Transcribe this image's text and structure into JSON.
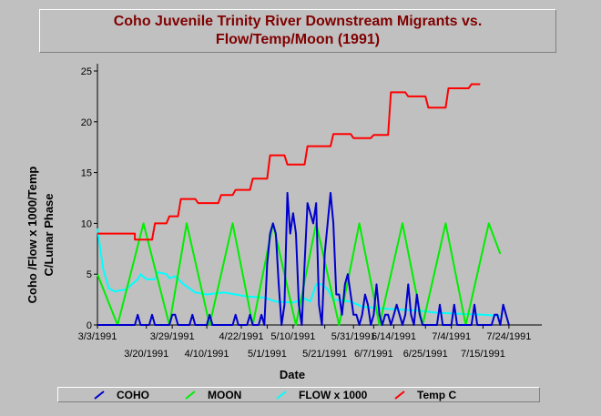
{
  "chart_data": {
    "type": "line",
    "title_lines": [
      "Coho Juvenile Trinity River Downstream Migrants vs.",
      "Flow/Temp/Moon (1991)"
    ],
    "xlabel": "Date",
    "ylabel_lines": [
      "Coho /Flow x 1000/Temp",
      "C/Lunar Phase"
    ],
    "ylim": [
      0,
      25
    ],
    "yticks": [
      0,
      5,
      10,
      15,
      20,
      25
    ],
    "x_range_days": [
      0,
      150
    ],
    "xticks_top": [
      {
        "label": "3/3/1991",
        "day": 0
      },
      {
        "label": "3/29/1991",
        "day": 26
      },
      {
        "label": "4/22/1991",
        "day": 50
      },
      {
        "label": "5/10/1991",
        "day": 68
      },
      {
        "label": "5/31/1991",
        "day": 89
      },
      {
        "label": "6/14/1991",
        "day": 103
      },
      {
        "label": "7/4/1991",
        "day": 123
      },
      {
        "label": "7/24/1991",
        "day": 143
      }
    ],
    "xticks_bottom": [
      {
        "label": "3/20/1991",
        "day": 17
      },
      {
        "label": "4/10/1991",
        "day": 38
      },
      {
        "label": "5/1/1991",
        "day": 59
      },
      {
        "label": "5/21/1991",
        "day": 79
      },
      {
        "label": "6/7/1991",
        "day": 96
      },
      {
        "label": "6/25/1991",
        "day": 114
      },
      {
        "label": "7/15/1991",
        "day": 134
      }
    ],
    "grid": false,
    "legend_position": "bottom",
    "series": [
      {
        "name": "COHO",
        "color": "#0000cc",
        "points": [
          [
            0,
            0
          ],
          [
            13,
            0
          ],
          [
            14,
            1
          ],
          [
            15,
            0
          ],
          [
            18,
            0
          ],
          [
            19,
            1
          ],
          [
            20,
            0
          ],
          [
            25,
            0
          ],
          [
            26,
            1
          ],
          [
            27,
            1
          ],
          [
            28,
            0
          ],
          [
            32,
            0
          ],
          [
            33,
            1
          ],
          [
            34,
            0
          ],
          [
            38,
            0
          ],
          [
            39,
            1
          ],
          [
            40,
            0
          ],
          [
            47,
            0
          ],
          [
            48,
            1
          ],
          [
            49,
            0
          ],
          [
            52,
            0
          ],
          [
            53,
            1
          ],
          [
            54,
            0
          ],
          [
            56,
            0
          ],
          [
            57,
            1
          ],
          [
            58,
            0
          ],
          [
            59,
            6
          ],
          [
            60,
            9
          ],
          [
            61,
            10
          ],
          [
            62,
            9
          ],
          [
            63,
            4
          ],
          [
            64,
            0
          ],
          [
            65,
            2
          ],
          [
            66,
            13
          ],
          [
            67,
            9
          ],
          [
            68,
            11
          ],
          [
            69,
            9
          ],
          [
            70,
            2
          ],
          [
            71,
            0
          ],
          [
            72,
            6
          ],
          [
            73,
            12
          ],
          [
            74,
            11
          ],
          [
            75,
            10
          ],
          [
            76,
            12
          ],
          [
            77,
            2
          ],
          [
            78,
            0
          ],
          [
            79,
            7
          ],
          [
            80,
            10
          ],
          [
            81,
            13
          ],
          [
            82,
            10
          ],
          [
            83,
            3
          ],
          [
            84,
            3
          ],
          [
            85,
            1
          ],
          [
            86,
            4
          ],
          [
            87,
            5
          ],
          [
            88,
            3
          ],
          [
            89,
            1
          ],
          [
            90,
            1
          ],
          [
            91,
            0
          ],
          [
            92,
            1
          ],
          [
            93,
            3
          ],
          [
            94,
            2
          ],
          [
            95,
            0
          ],
          [
            96,
            1
          ],
          [
            97,
            4
          ],
          [
            98,
            1
          ],
          [
            99,
            0
          ],
          [
            100,
            1
          ],
          [
            101,
            1
          ],
          [
            102,
            0
          ],
          [
            103,
            1
          ],
          [
            104,
            2
          ],
          [
            105,
            1
          ],
          [
            106,
            0
          ],
          [
            107,
            1
          ],
          [
            108,
            4
          ],
          [
            109,
            1
          ],
          [
            110,
            0
          ],
          [
            111,
            3
          ],
          [
            112,
            1
          ],
          [
            113,
            0
          ],
          [
            118,
            0
          ],
          [
            119,
            2
          ],
          [
            120,
            0
          ],
          [
            123,
            0
          ],
          [
            124,
            2
          ],
          [
            125,
            0
          ],
          [
            130,
            0
          ],
          [
            131,
            2
          ],
          [
            132,
            0
          ],
          [
            137,
            0
          ],
          [
            138,
            1
          ],
          [
            139,
            1
          ],
          [
            140,
            0
          ],
          [
            141,
            2
          ],
          [
            142,
            1
          ],
          [
            143,
            0
          ]
        ]
      },
      {
        "name": "MOON",
        "color": "#00ee00",
        "points": [
          [
            0,
            5
          ],
          [
            7,
            0
          ],
          [
            16,
            10
          ],
          [
            25,
            0
          ],
          [
            31,
            10
          ],
          [
            39,
            0
          ],
          [
            47,
            10
          ],
          [
            54,
            0
          ],
          [
            61,
            10
          ],
          [
            69,
            0
          ],
          [
            76,
            10
          ],
          [
            84,
            0
          ],
          [
            91,
            10
          ],
          [
            98,
            0
          ],
          [
            106,
            10
          ],
          [
            113,
            0
          ],
          [
            121,
            10
          ],
          [
            128,
            0
          ],
          [
            136,
            10
          ],
          [
            140,
            7
          ]
        ]
      },
      {
        "name": "FLOW x 1000",
        "color": "#00ffff",
        "points": [
          [
            0,
            9.5
          ],
          [
            2,
            5.5
          ],
          [
            4,
            3.6
          ],
          [
            6,
            3.3
          ],
          [
            10,
            3.5
          ],
          [
            14,
            4.5
          ],
          [
            15,
            5
          ],
          [
            17,
            4.5
          ],
          [
            20,
            4.5
          ],
          [
            21,
            5.2
          ],
          [
            24,
            5
          ],
          [
            25,
            4.6
          ],
          [
            27,
            4.8
          ],
          [
            30,
            4
          ],
          [
            34,
            3.2
          ],
          [
            38,
            3.0
          ],
          [
            44,
            3.2
          ],
          [
            48,
            3.0
          ],
          [
            52,
            2.8
          ],
          [
            58,
            2.7
          ],
          [
            62,
            2.3
          ],
          [
            68,
            2.2
          ],
          [
            72,
            2.6
          ],
          [
            74,
            2.3
          ],
          [
            76,
            4.0
          ],
          [
            78,
            4.0
          ],
          [
            80,
            3.5
          ],
          [
            82,
            2.5
          ],
          [
            88,
            2.3
          ],
          [
            92,
            1.8
          ],
          [
            96,
            1.7
          ],
          [
            100,
            1.6
          ],
          [
            106,
            1.5
          ],
          [
            112,
            1.4
          ],
          [
            118,
            1.2
          ],
          [
            126,
            1.1
          ],
          [
            134,
            1.0
          ],
          [
            140,
            0.9
          ]
        ]
      },
      {
        "name": "Temp C",
        "color": "#ff0000",
        "points": [
          [
            0,
            9
          ],
          [
            13,
            9
          ],
          [
            13,
            8.4
          ],
          [
            19,
            8.4
          ],
          [
            20,
            10
          ],
          [
            24,
            10
          ],
          [
            25,
            10.7
          ],
          [
            28,
            10.7
          ],
          [
            29,
            12.4
          ],
          [
            34,
            12.4
          ],
          [
            35,
            12
          ],
          [
            42,
            12
          ],
          [
            43,
            12.8
          ],
          [
            47,
            12.8
          ],
          [
            48,
            13.3
          ],
          [
            53,
            13.3
          ],
          [
            54,
            14.4
          ],
          [
            59,
            14.4
          ],
          [
            60,
            16.7
          ],
          [
            65,
            16.7
          ],
          [
            66,
            15.8
          ],
          [
            72,
            15.8
          ],
          [
            73,
            17.6
          ],
          [
            81,
            17.6
          ],
          [
            82,
            18.8
          ],
          [
            88,
            18.8
          ],
          [
            89,
            18.4
          ],
          [
            95,
            18.4
          ],
          [
            96,
            18.7
          ],
          [
            101,
            18.7
          ],
          [
            102,
            22.9
          ],
          [
            107,
            22.9
          ],
          [
            108,
            22.5
          ],
          [
            114,
            22.5
          ],
          [
            115,
            21.4
          ],
          [
            121,
            21.4
          ],
          [
            122,
            23.3
          ],
          [
            129,
            23.3
          ],
          [
            130,
            23.7
          ],
          [
            133,
            23.7
          ]
        ]
      }
    ]
  }
}
